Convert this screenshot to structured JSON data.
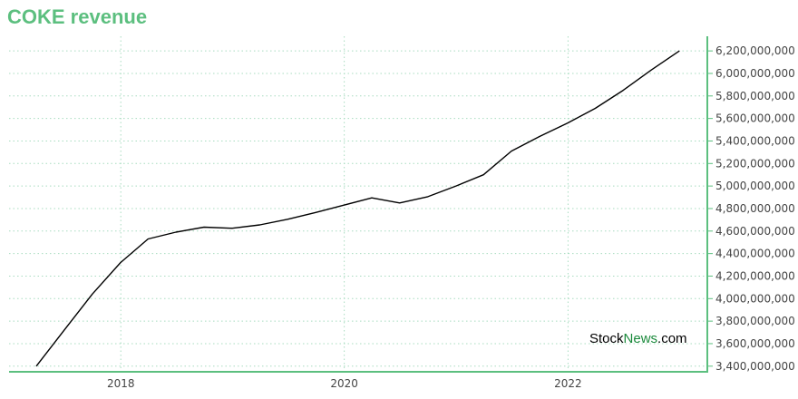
{
  "header": {
    "title": "COKE revenue"
  },
  "watermark": {
    "part1": "Stock",
    "part2": "News",
    "part3": ".com"
  },
  "colors": {
    "accent": "#5cbf7f",
    "line": "#000000",
    "grid": "#a8dcc0",
    "axis": "#5cbf7f",
    "brand": "#1b8a3c"
  },
  "chart_data": {
    "type": "line",
    "title": "COKE revenue",
    "xlabel": "",
    "ylabel": "",
    "x_ticks": [
      "2018",
      "2020",
      "2022"
    ],
    "y_ticks": [
      "3,400,000,000",
      "3,600,000,000",
      "3,800,000,000",
      "4,000,000,000",
      "4,200,000,000",
      "4,400,000,000",
      "4,600,000,000",
      "4,800,000,000",
      "5,000,000,000",
      "5,200,000,000",
      "5,400,000,000",
      "5,600,000,000",
      "5,800,000,000",
      "6,000,000,000",
      "6,200,000,000"
    ],
    "ylim": [
      3350000000,
      6330000000
    ],
    "xlim": [
      "2017-01-01",
      "2023-04-01"
    ],
    "grid": true,
    "legend": "none",
    "series": [
      {
        "x": [
          "2017-03-31",
          "2017-06-30",
          "2017-09-30",
          "2017-12-31",
          "2018-03-31",
          "2018-06-30",
          "2018-09-30",
          "2018-12-31",
          "2019-03-31",
          "2019-06-30",
          "2019-09-30",
          "2019-12-31",
          "2020-03-31",
          "2020-06-30",
          "2020-09-30",
          "2020-12-31",
          "2021-03-31",
          "2021-06-30",
          "2021-09-30",
          "2021-12-31",
          "2022-03-31",
          "2022-06-30",
          "2022-09-30",
          "2022-12-31"
        ],
        "values": [
          3400000000,
          3720000000,
          4040000000,
          4320000000,
          4530000000,
          4590000000,
          4635000000,
          4625000000,
          4655000000,
          4705000000,
          4765000000,
          4830000000,
          4895000000,
          4850000000,
          4905000000,
          5000000000,
          5100000000,
          5310000000,
          5440000000,
          5560000000,
          5690000000,
          5850000000,
          6030000000,
          6200000000
        ]
      }
    ]
  }
}
